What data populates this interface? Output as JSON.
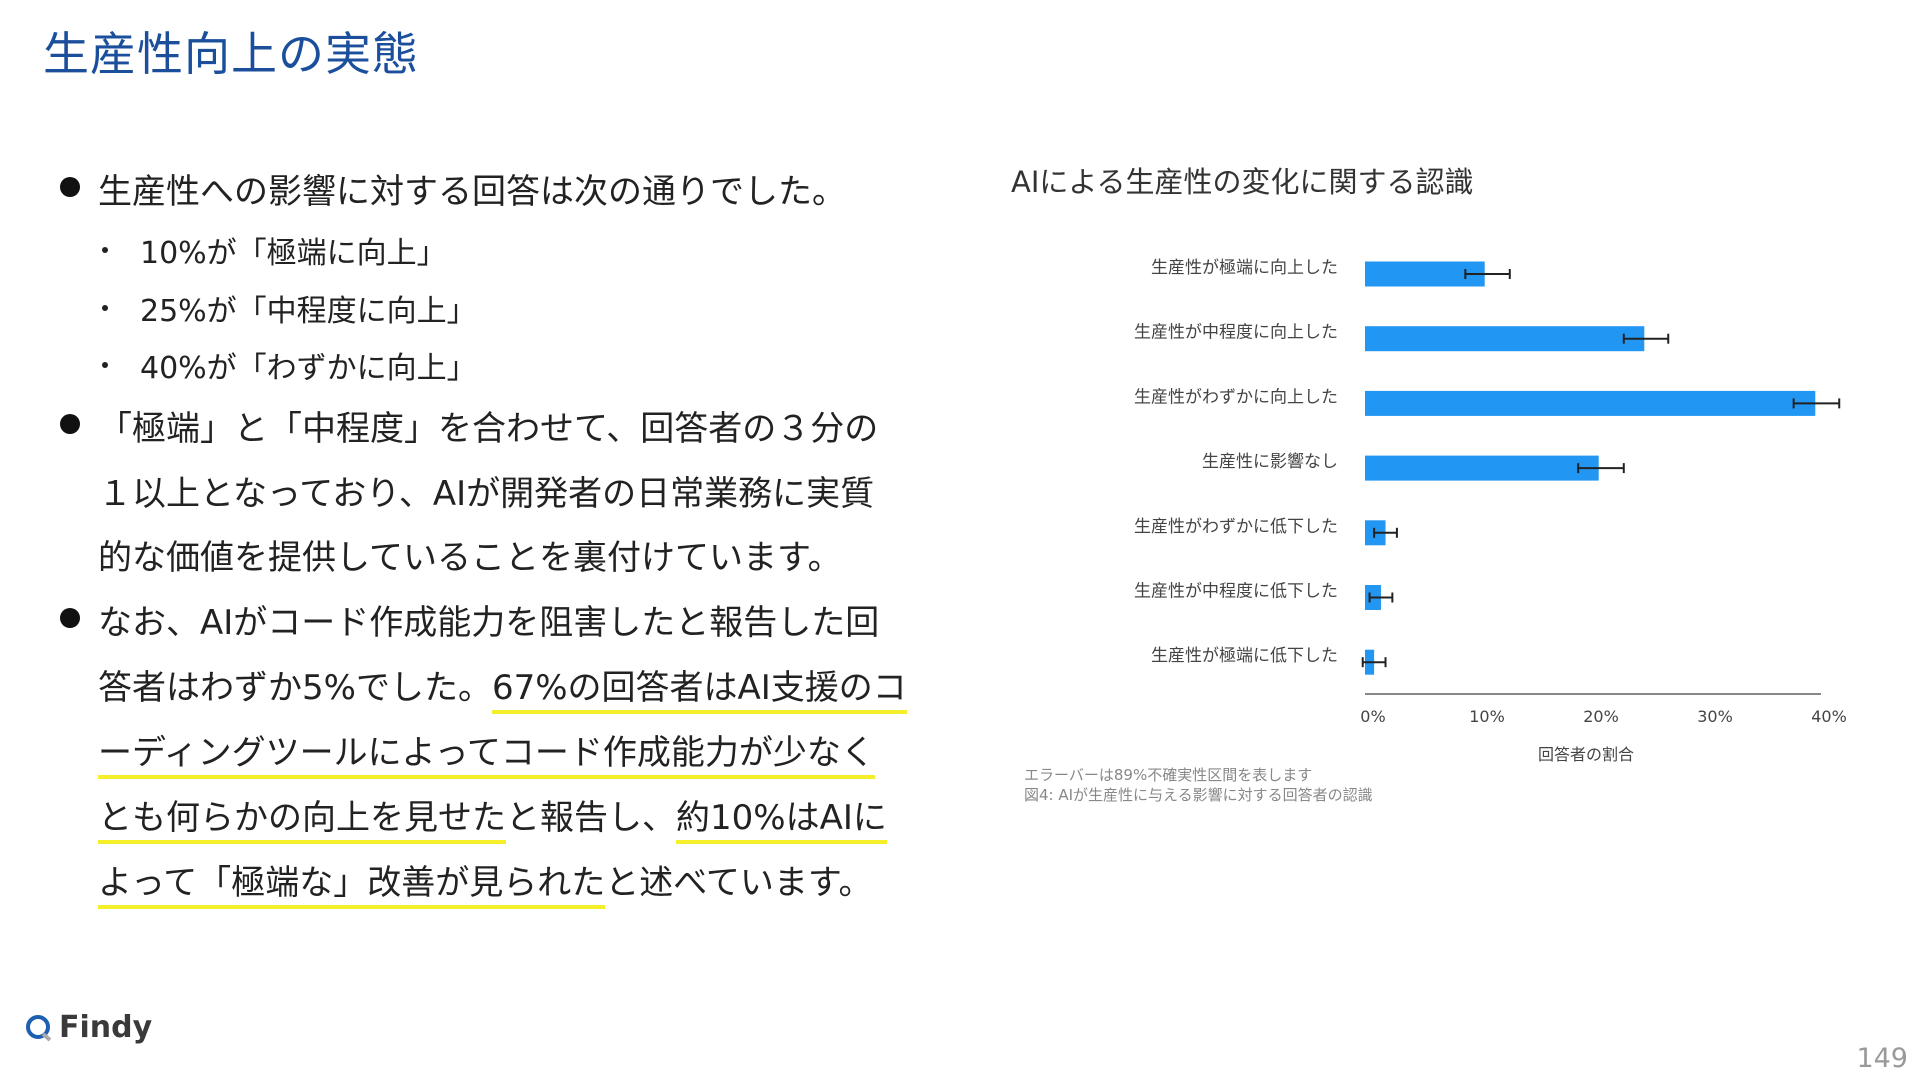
{
  "title": "生産性向上の実態",
  "bullets": {
    "b1": "生産性への影響に対する回答は次の通りでした。",
    "sub": [
      "10%が「極端に向上」",
      "25%が「中程度に向上」",
      "40%が「わずかに向上」"
    ],
    "b2": [
      "「極端」と「中程度」を合わせて、回答者の３分の",
      "１以上となっており、AIが開発者の日常業務に実質",
      "的な価値を提供していることを裏付けています。"
    ],
    "b3": {
      "l1": "なお、AIがコード作成能力を阻害したと報告した回",
      "l2a": "答者はわずか5%でした。",
      "l2b": "67%の回答者はAI支援のコ",
      "l3": "ーディングツールによってコード作成能力が少なく",
      "l4a": "とも何らかの向上を見せた",
      "l4b": "と報告し、",
      "l4c": "約10%はAIに",
      "l5a": "よって「極端な」改善が見られた",
      "l5b": "と述べています。"
    }
  },
  "chart_data": {
    "type": "bar",
    "orientation": "horizontal",
    "title": "AIによる生産性の変化に関する認識",
    "categories": [
      "生産性が極端に向上した",
      "生産性が中程度に向上した",
      "生産性がわずかに向上した",
      "生産性に影響なし",
      "生産性がわずかに低下した",
      "生産性が中程度に低下した",
      "生産性が極端に低下した"
    ],
    "values": [
      10.5,
      24.5,
      39.5,
      20.5,
      1.8,
      1.4,
      0.8
    ],
    "error_low": [
      8.8,
      22.7,
      37.6,
      18.7,
      0.8,
      0.4,
      -0.2
    ],
    "error_high": [
      12.7,
      26.6,
      41.6,
      22.7,
      2.8,
      2.4,
      1.8
    ],
    "xlim": [
      0,
      40
    ],
    "xticks": [
      "0%",
      "10%",
      "20%",
      "30%",
      "40%"
    ],
    "xlabel": "回答者の割合",
    "grid": false,
    "bar_color": "#2196f3",
    "notes": [
      "エラーバーは89%不確実性区間を表します",
      "図4: AIが生産性に与える影響に対する回答者の認識"
    ]
  },
  "footer": {
    "logo": "Findy",
    "page": "149"
  },
  "colors": {
    "title": "#1b4f9c",
    "highlight": "#f5ee2a"
  }
}
